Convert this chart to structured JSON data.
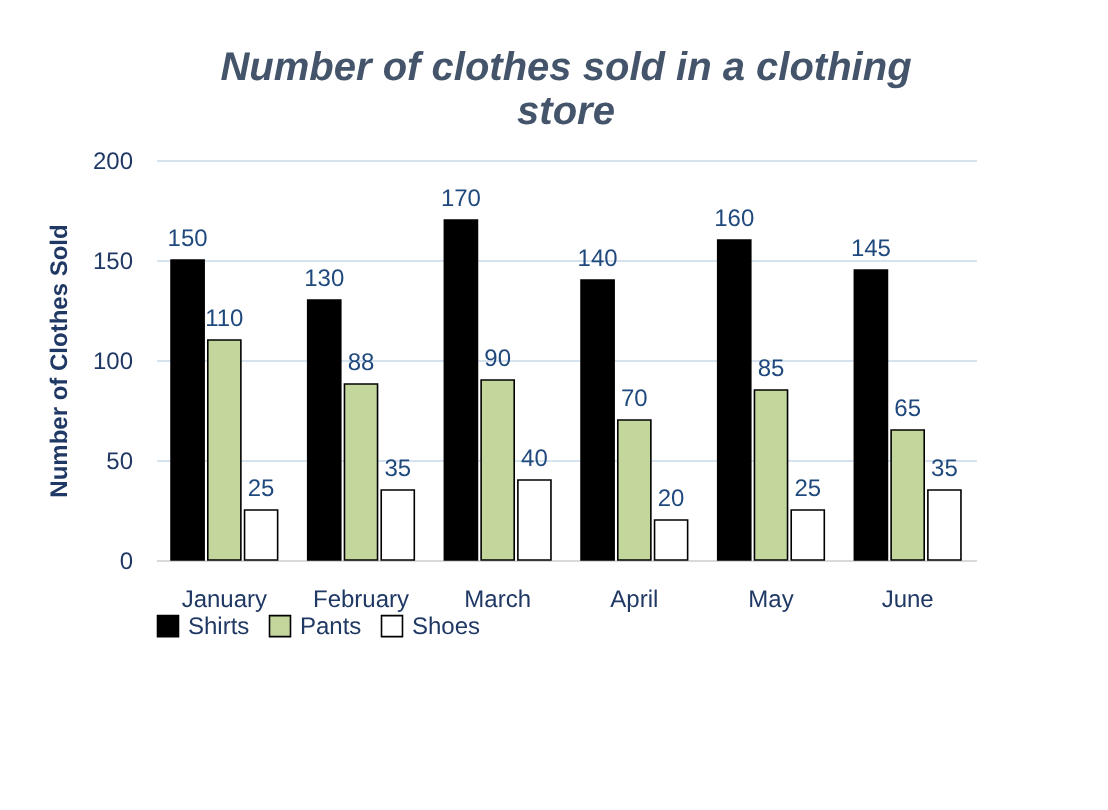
{
  "chart_data": {
    "type": "bar",
    "title": "Number of clothes sold in a clothing store",
    "ylabel": "Number of Clothes Sold",
    "categories": [
      "January",
      "February",
      "March",
      "April",
      "May",
      "June"
    ],
    "series": [
      {
        "name": "Shirts",
        "color": "#000000",
        "values": [
          150,
          130,
          170,
          140,
          160,
          145
        ]
      },
      {
        "name": "Pants",
        "color": "#c3d69b",
        "values": [
          110,
          88,
          90,
          70,
          85,
          65
        ]
      },
      {
        "name": "Shoes",
        "color": "#ffffff",
        "values": [
          25,
          35,
          40,
          20,
          25,
          35
        ]
      }
    ],
    "ylim": [
      0,
      200
    ],
    "yticks": [
      0,
      50,
      100,
      150,
      200
    ],
    "grid": "y",
    "legend": "bottom",
    "data_labels": true
  }
}
